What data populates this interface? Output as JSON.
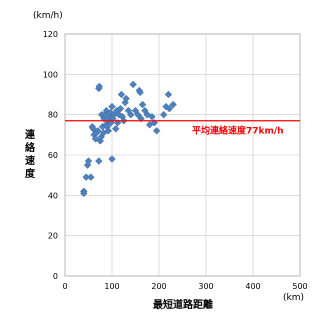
{
  "chart_data": {
    "type": "scatter",
    "title": "",
    "xlabel": "最短道路距離",
    "xunit": "(km)",
    "ylabel": "連絡速度",
    "yunit": "(km/h)",
    "xlim": [
      0,
      500
    ],
    "ylim": [
      0,
      120
    ],
    "xticks": [
      "0",
      "100",
      "200",
      "300",
      "400",
      "500"
    ],
    "yticks": [
      "0",
      "20",
      "40",
      "60",
      "80",
      "100",
      "120"
    ],
    "grid": true,
    "marker": "diamond",
    "marker_color": "#4f81bd",
    "reference_line": {
      "y": 77,
      "color": "#ff0000",
      "label": "平均連絡速度77km/h"
    },
    "points": [
      [
        40,
        42
      ],
      [
        40,
        41
      ],
      [
        45,
        49
      ],
      [
        48,
        55
      ],
      [
        50,
        57
      ],
      [
        55,
        49
      ],
      [
        58,
        74
      ],
      [
        60,
        73
      ],
      [
        62,
        70
      ],
      [
        65,
        68
      ],
      [
        67,
        71
      ],
      [
        70,
        72
      ],
      [
        72,
        93
      ],
      [
        73,
        94
      ],
      [
        72,
        57
      ],
      [
        75,
        67
      ],
      [
        77,
        69
      ],
      [
        78,
        80
      ],
      [
        80,
        74
      ],
      [
        82,
        71
      ],
      [
        83,
        78
      ],
      [
        85,
        80
      ],
      [
        87,
        75
      ],
      [
        88,
        82
      ],
      [
        90,
        74
      ],
      [
        92,
        72
      ],
      [
        93,
        77
      ],
      [
        95,
        79
      ],
      [
        97,
        81
      ],
      [
        98,
        76
      ],
      [
        100,
        58
      ],
      [
        100,
        84
      ],
      [
        102,
        78
      ],
      [
        105,
        80
      ],
      [
        108,
        73
      ],
      [
        110,
        82
      ],
      [
        112,
        76
      ],
      [
        115,
        80
      ],
      [
        118,
        83
      ],
      [
        120,
        90
      ],
      [
        122,
        79
      ],
      [
        125,
        77
      ],
      [
        128,
        86
      ],
      [
        130,
        88
      ],
      [
        135,
        82
      ],
      [
        140,
        80
      ],
      [
        145,
        95
      ],
      [
        150,
        82
      ],
      [
        155,
        80
      ],
      [
        158,
        92
      ],
      [
        160,
        91
      ],
      [
        162,
        78
      ],
      [
        165,
        85
      ],
      [
        170,
        82
      ],
      [
        175,
        80
      ],
      [
        180,
        75
      ],
      [
        185,
        79
      ],
      [
        190,
        76
      ],
      [
        195,
        72
      ],
      [
        210,
        80
      ],
      [
        215,
        84
      ],
      [
        220,
        90
      ],
      [
        222,
        83
      ],
      [
        230,
        85
      ]
    ]
  }
}
